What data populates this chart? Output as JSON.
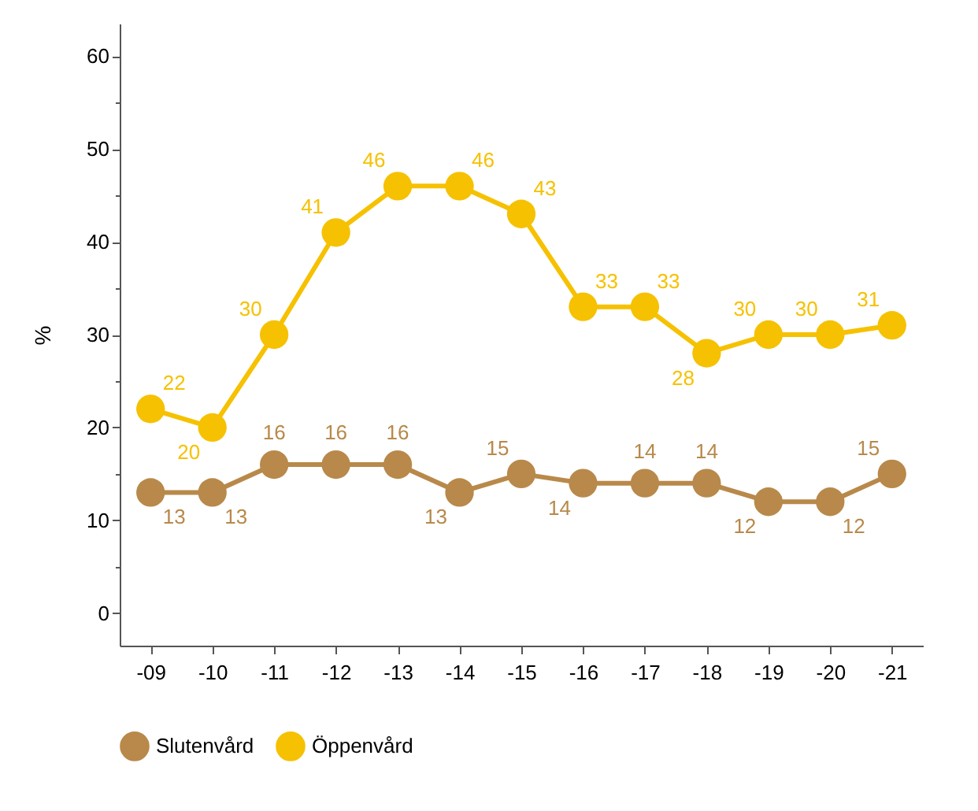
{
  "chart_data": {
    "type": "line",
    "ylabel": "%",
    "categories": [
      "-09",
      "-10",
      "-11",
      "-12",
      "-13",
      "-14",
      "-15",
      "-16",
      "-17",
      "-18",
      "-19",
      "-20",
      "-21"
    ],
    "series": [
      {
        "name": "Slutenvård",
        "color": "#b8894a",
        "values": [
          13,
          13,
          16,
          16,
          16,
          13,
          15,
          14,
          14,
          14,
          12,
          12,
          15
        ]
      },
      {
        "name": "Öppenvård",
        "color": "#f6c100",
        "values": [
          22,
          20,
          30,
          41,
          46,
          46,
          43,
          33,
          33,
          28,
          30,
          30,
          31
        ]
      }
    ],
    "ylim": [
      -3.5,
      63.5
    ],
    "yticks": [
      0,
      {
        "value": 5,
        "label": null
      },
      10,
      {
        "value": 15,
        "label": null
      },
      20,
      {
        "value": 25,
        "label": null
      },
      30,
      {
        "value": 35,
        "label": null
      },
      40,
      {
        "value": 45,
        "label": null
      },
      50,
      {
        "value": 55,
        "label": null
      },
      60
    ],
    "grid": false,
    "legend": "bottom",
    "marker": "circle",
    "line_style": "solid",
    "data_labels": true
  }
}
